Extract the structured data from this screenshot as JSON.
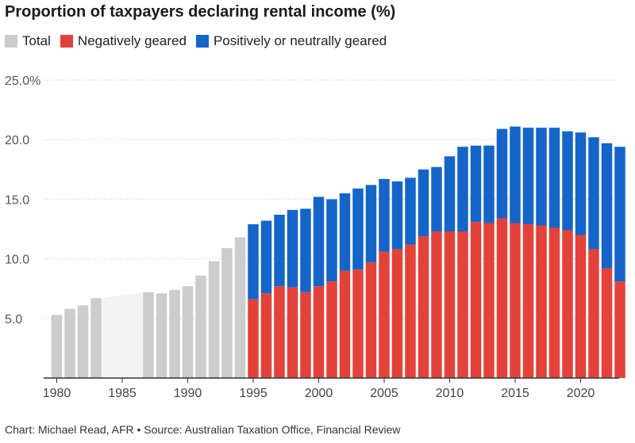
{
  "title": "Proportion of taxpayers declaring rental income (%)",
  "legend": [
    {
      "label": "Total",
      "color": "#cccccc"
    },
    {
      "label": "Negatively geared",
      "color": "#e3423a"
    },
    {
      "label": "Positively or neutrally geared",
      "color": "#1565c9"
    }
  ],
  "footer": "Chart: Michael Read, AFR • Source: Australian Taxation Office, Financial Review",
  "chart_data": {
    "type": "bar",
    "stacked": true,
    "title": "Proportion of taxpayers declaring rental income (%)",
    "xlabel": "",
    "ylabel": "",
    "ylim": [
      0,
      25
    ],
    "y_ticks": [
      5,
      10,
      15,
      20,
      25
    ],
    "y_tick_labels": [
      "5.0",
      "10.0",
      "15.0",
      "20.0",
      "25.0%"
    ],
    "x_ticks": [
      1980,
      1985,
      1990,
      1995,
      2000,
      2005,
      2010,
      2015,
      2020
    ],
    "x_tick_labels": [
      "1980",
      "1985",
      "1990",
      "1995",
      "2000",
      "2005",
      "2010",
      "2015",
      "2020"
    ],
    "gap_band": [
      1983,
      1986
    ],
    "total_series": {
      "name": "Total",
      "color": "#cccccc",
      "years": [
        1980,
        1981,
        1982,
        1983,
        1987,
        1988,
        1989,
        1990,
        1991,
        1992,
        1993,
        1994
      ],
      "values": [
        5.3,
        5.8,
        6.1,
        6.7,
        7.2,
        7.1,
        7.4,
        7.7,
        8.6,
        9.8,
        10.9,
        11.8
      ]
    },
    "stacked_years": [
      1995,
      1996,
      1997,
      1998,
      1999,
      2000,
      2001,
      2002,
      2003,
      2004,
      2005,
      2006,
      2007,
      2008,
      2009,
      2010,
      2011,
      2012,
      2013,
      2014,
      2015,
      2016,
      2017,
      2018,
      2019,
      2020,
      2021,
      2022,
      2023
    ],
    "series": [
      {
        "name": "Negatively geared",
        "color": "#e3423a",
        "values": [
          6.6,
          7.1,
          7.7,
          7.6,
          7.2,
          7.7,
          8.1,
          9.0,
          9.1,
          9.7,
          10.6,
          10.8,
          11.2,
          11.9,
          12.3,
          12.3,
          12.3,
          13.1,
          13.0,
          13.4,
          13.0,
          12.9,
          12.8,
          12.6,
          12.4,
          12.0,
          10.8,
          9.2,
          8.1
        ]
      },
      {
        "name": "Positively or neutrally geared",
        "color": "#1565c9",
        "values": [
          6.3,
          6.1,
          6.0,
          6.5,
          7.0,
          7.5,
          6.9,
          6.5,
          6.8,
          6.5,
          6.1,
          5.7,
          5.6,
          5.6,
          5.4,
          6.3,
          7.1,
          6.4,
          6.5,
          7.5,
          8.1,
          8.1,
          8.2,
          8.4,
          8.3,
          8.6,
          9.4,
          10.5,
          11.3
        ]
      }
    ]
  }
}
